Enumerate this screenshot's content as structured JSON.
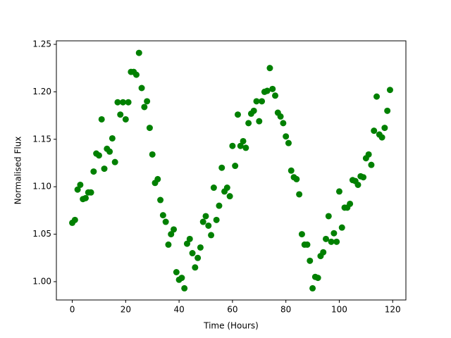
{
  "chart_data": {
    "type": "scatter",
    "x_label": "Time (Hours)",
    "y_label": "Normalised Flux",
    "series": [
      {
        "color": "#008000",
        "x": [
          0,
          1,
          2,
          3,
          4,
          5,
          6,
          7,
          8,
          9,
          10,
          11,
          12,
          13,
          14,
          15,
          16,
          17,
          18,
          19,
          20,
          21,
          22,
          23,
          24,
          25,
          26,
          27,
          28,
          29,
          30,
          31,
          32,
          33,
          34,
          35,
          36,
          37,
          38,
          39,
          40,
          41,
          42,
          43,
          44,
          45,
          46,
          47,
          48,
          49,
          50,
          51,
          52,
          53,
          54,
          55,
          56,
          57,
          58,
          59,
          60,
          61,
          62,
          63,
          64,
          65,
          66,
          67,
          68,
          69,
          70,
          71,
          72,
          73,
          74,
          75,
          76,
          77,
          78,
          79,
          80,
          81,
          82,
          83,
          84,
          85,
          86,
          87,
          88,
          89,
          90,
          91,
          92,
          93,
          94,
          95,
          96,
          97,
          98,
          99,
          100,
          101,
          102,
          103,
          104,
          105,
          106,
          107,
          108,
          109,
          110,
          111,
          112,
          113,
          114,
          115,
          116,
          117,
          118,
          119
        ],
        "values": [
          1.062,
          1.065,
          1.097,
          1.102,
          1.087,
          1.088,
          1.094,
          1.094,
          1.116,
          1.135,
          1.133,
          1.171,
          1.119,
          1.14,
          1.137,
          1.151,
          1.126,
          1.189,
          1.176,
          1.189,
          1.171,
          1.189,
          1.221,
          1.221,
          1.218,
          1.241,
          1.204,
          1.184,
          1.19,
          1.162,
          1.134,
          1.104,
          1.108,
          1.086,
          1.07,
          1.063,
          1.039,
          1.05,
          1.055,
          1.01,
          1.002,
          1.004,
          0.993,
          1.04,
          1.045,
          1.03,
          1.015,
          1.025,
          1.036,
          1.063,
          1.069,
          1.059,
          1.049,
          1.099,
          1.065,
          1.08,
          1.12,
          1.095,
          1.099,
          1.09,
          1.143,
          1.122,
          1.176,
          1.143,
          1.148,
          1.141,
          1.167,
          1.177,
          1.18,
          1.19,
          1.169,
          1.19,
          1.2,
          1.201,
          1.225,
          1.203,
          1.196,
          1.178,
          1.174,
          1.167,
          1.153,
          1.146,
          1.117,
          1.11,
          1.108,
          1.092,
          1.05,
          1.039,
          1.039,
          1.022,
          0.993,
          1.005,
          1.004,
          1.027,
          1.031,
          1.045,
          1.069,
          1.042,
          1.051,
          1.042,
          1.095,
          1.057,
          1.078,
          1.078,
          1.082,
          1.107,
          1.106,
          1.102,
          1.111,
          1.11,
          1.13,
          1.134,
          1.123,
          1.159,
          1.195,
          1.155,
          1.152,
          1.162,
          1.18,
          1.202
        ]
      }
    ],
    "xlim": [
      -5.95,
      124.95
    ],
    "ylim": [
      0.9807,
      1.2537
    ],
    "xticks": [
      0,
      20,
      40,
      60,
      80,
      100,
      120
    ],
    "yticks": [
      {
        "value": 1,
        "label": "1.00"
      },
      1.05,
      {
        "value": 1.1,
        "label": "1.10"
      },
      1.15,
      {
        "value": 1.2,
        "label": "1.20"
      },
      1.25
    ]
  }
}
